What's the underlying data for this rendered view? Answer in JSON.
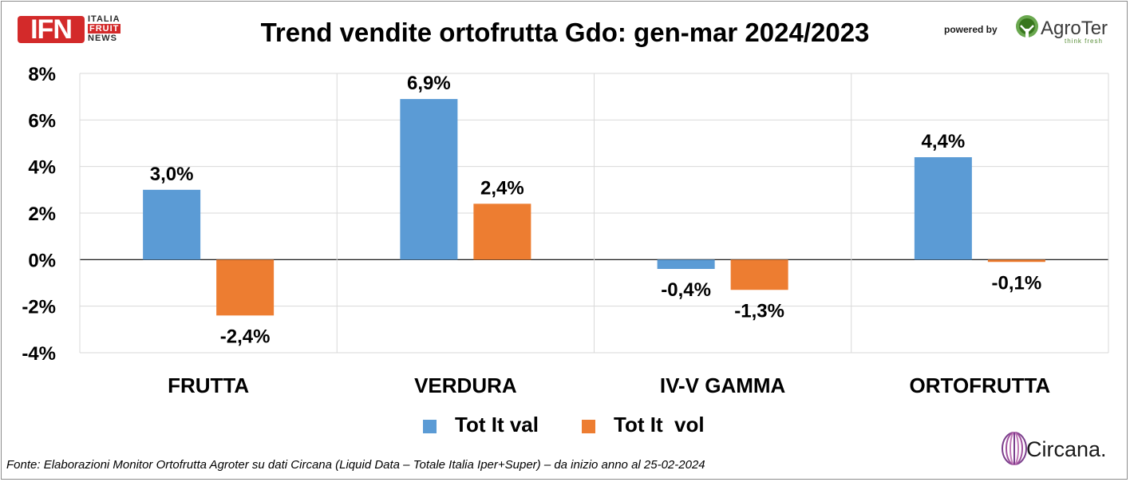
{
  "brand": {
    "ifn_mark": "IFN",
    "ifn_words": [
      "ITALIA",
      "FRUIT",
      "NEWS"
    ],
    "powered_by": "powered by",
    "agroter_name": "AgroTer",
    "agroter_tagline": "think fresh",
    "circana_name": "Circana.",
    "colors": {
      "ifn_red": "#d32a2a",
      "agroter_green": "#5a8f3a",
      "circana_purple": "#7b3f8c"
    }
  },
  "source_note": "Fonte: Elaborazioni Monitor Ortofrutta Agroter su dati Circana (Liquid Data – Totale Italia Iper+Super) –  da inizio anno al 25-02-2024",
  "chart_data": {
    "type": "bar",
    "title": "Trend vendite ortofrutta Gdo: gen-mar 2024/2023",
    "xlabel": "",
    "ylabel": "",
    "categories": [
      "FRUTTA",
      "VERDURA",
      "IV-V GAMMA",
      "ORTOFRUTTA"
    ],
    "series": [
      {
        "name": "Tot It val",
        "color": "#5b9bd5",
        "values": [
          3.0,
          6.9,
          -0.4,
          4.4
        ],
        "labels": [
          "3,0%",
          "6,9%",
          "-0,4%",
          "4,4%"
        ]
      },
      {
        "name": "Tot It  vol",
        "color": "#ed7d31",
        "values": [
          -2.4,
          2.4,
          -1.3,
          -0.1
        ],
        "labels": [
          "-2,4%",
          "2,4%",
          "-1,3%",
          "-0,1%"
        ]
      }
    ],
    "ylim": [
      -4,
      8
    ],
    "yticks": [
      8,
      6,
      4,
      2,
      0,
      -2,
      -4
    ],
    "ytick_labels": [
      "8%",
      "6%",
      "4%",
      "2%",
      "0%",
      "-2%",
      "-4%"
    ],
    "grid": true,
    "legend_position": "bottom"
  }
}
